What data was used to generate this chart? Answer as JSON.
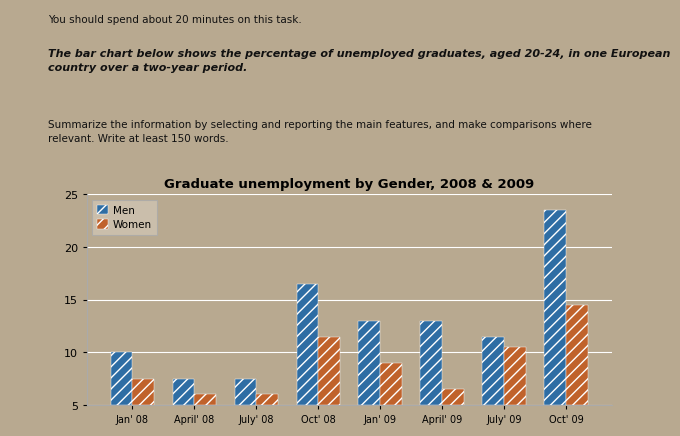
{
  "title": "Graduate unemployment by Gender, 2008 & 2009",
  "categories": [
    "Jan' 08",
    "April' 08",
    "July' 08",
    "Oct' 08",
    "Jan' 09",
    "April' 09",
    "July' 09",
    "Oct' 09"
  ],
  "men_values": [
    10,
    7.5,
    7.5,
    16.5,
    13,
    13,
    11.5,
    23.5
  ],
  "women_values": [
    7.5,
    6,
    6,
    11.5,
    9,
    6.5,
    10.5,
    14.5
  ],
  "men_color": "#2E6DA4",
  "women_color": "#C0622B",
  "ylim": [
    5,
    25
  ],
  "yticks": [
    5,
    10,
    15,
    20,
    25
  ],
  "legend_labels": [
    "Men",
    "Women"
  ],
  "line1": "You should spend about 20 minutes on this task.",
  "line2": "The bar chart below shows the percentage of unemployed graduates, aged 20-24, in one European\ncountry over a two-year period.",
  "line3": "Summarize the information by selecting and reporting the main features, and make comparisons where\nrelevant. Write at least 150 words.",
  "fig_bg": "#b8a990",
  "chart_bg": "#cfc4b2",
  "chart_border": "#888888",
  "bar_hatch": "///",
  "text_color": "#111111"
}
